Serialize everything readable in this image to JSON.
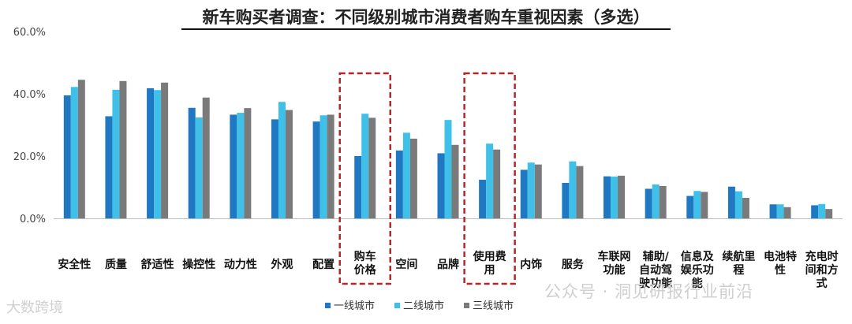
{
  "chart_data": {
    "type": "bar",
    "title": "新车购买者调查：不同级别城市消费者购车重视因素（多选）",
    "categories": [
      "安全性",
      "质量",
      "舒适性",
      "操控性",
      "动力性",
      "外观",
      "配置",
      "购车价格",
      "空间",
      "品牌",
      "使用费用",
      "内饰",
      "服务",
      "车联网功能",
      "辅助/自动驾驶功能",
      "信息及娱乐功能",
      "续航里程",
      "电池特性",
      "充电时间和方式"
    ],
    "category_lines": [
      [
        "安全性"
      ],
      [
        "质量"
      ],
      [
        "舒适性"
      ],
      [
        "操控性"
      ],
      [
        "动力性"
      ],
      [
        "外观"
      ],
      [
        "配置"
      ],
      [
        "购车",
        "价格"
      ],
      [
        "空间"
      ],
      [
        "品牌"
      ],
      [
        "使用费",
        "用"
      ],
      [
        "内饰"
      ],
      [
        "服务"
      ],
      [
        "车联网",
        "功能"
      ],
      [
        "辅助/",
        "自动驾",
        "驶功能"
      ],
      [
        "信息及",
        "娱乐功",
        "能"
      ],
      [
        "续航里",
        "程"
      ],
      [
        "电池特",
        "性"
      ],
      [
        "充电时",
        "间和方",
        "式"
      ]
    ],
    "series": [
      {
        "name": "一线城市",
        "color": "#1f78c1",
        "values": [
          39.5,
          32.8,
          41.8,
          35.5,
          33.3,
          31.8,
          31.1,
          20.0,
          21.8,
          20.9,
          12.4,
          15.6,
          11.4,
          13.5,
          9.5,
          7.2,
          10.2,
          4.5,
          4.2
        ]
      },
      {
        "name": "二线城市",
        "color": "#3fc0e8",
        "values": [
          42.2,
          41.3,
          41.2,
          32.4,
          33.9,
          37.4,
          33.1,
          33.6,
          27.5,
          31.6,
          24.0,
          17.9,
          18.3,
          13.4,
          10.9,
          8.8,
          8.7,
          4.5,
          4.6
        ]
      },
      {
        "name": "三线城市",
        "color": "#7a7a7a",
        "values": [
          44.5,
          44.1,
          43.6,
          38.8,
          35.4,
          34.8,
          33.3,
          32.3,
          25.6,
          23.6,
          22.1,
          17.3,
          16.8,
          13.7,
          10.4,
          8.5,
          6.6,
          3.6,
          3.0
        ]
      }
    ],
    "y_ticks": [
      "0.0%",
      "20.0%",
      "40.0%",
      "60.0%"
    ],
    "ylim": [
      0,
      60
    ],
    "grid": false,
    "legend_position": "bottom",
    "highlighted_categories": [
      "购车价格",
      "使用费用"
    ]
  },
  "watermark": "公众号 · 洞见研报行业前沿",
  "corner_watermark": "大数跨境"
}
